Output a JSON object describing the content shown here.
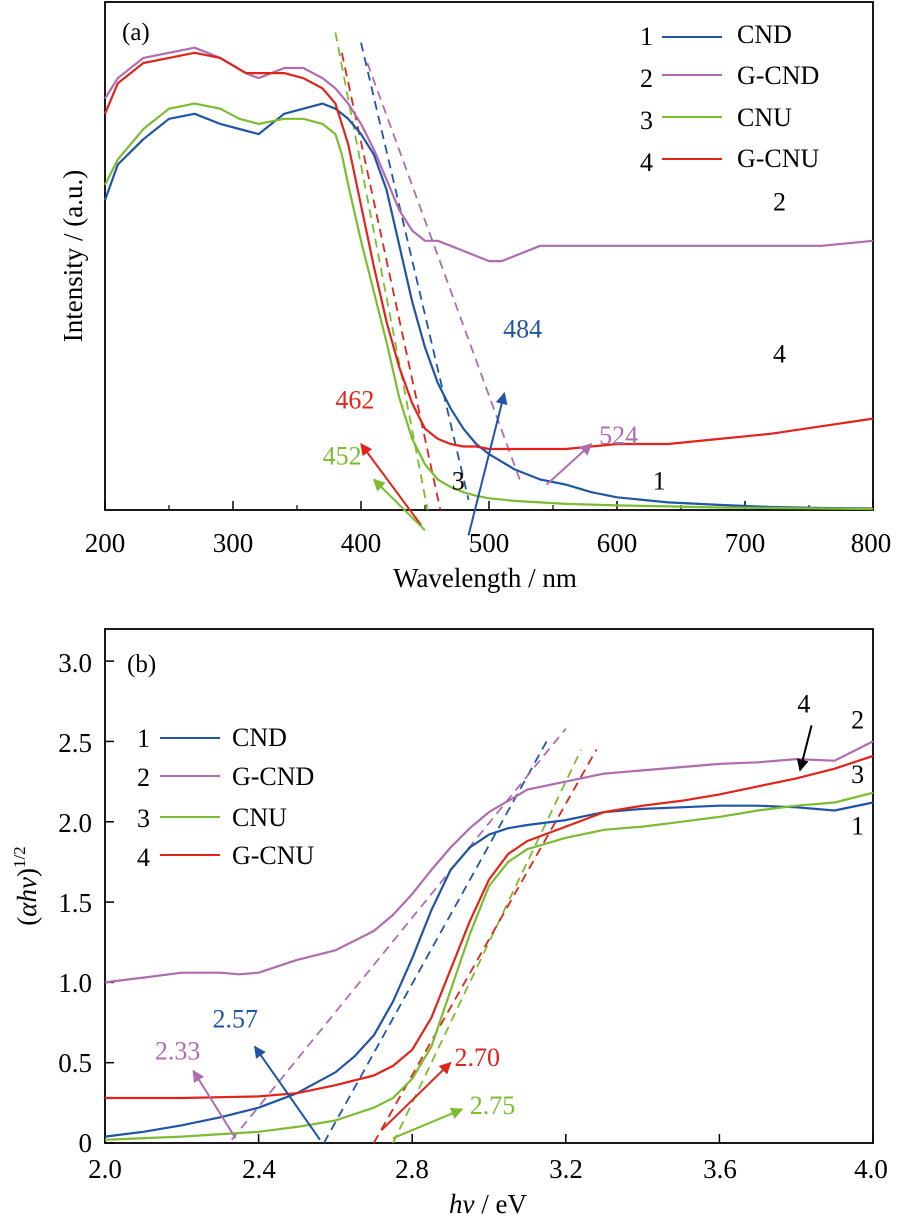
{
  "colors": {
    "CND": "#2055a5",
    "G-CND": "#b06cb0",
    "CNU": "#7cbd2f",
    "G-CNU": "#e2231a",
    "axis": "#000000"
  },
  "chart_data": [
    {
      "type": "line",
      "panel_label": "(a)",
      "xlabel": "Wavelength / nm",
      "ylabel": "Intensity / (a.u.)",
      "xlim": [
        200,
        800
      ],
      "ylim": [
        0,
        1
      ],
      "xticks": [
        "200",
        "300",
        "400",
        "500",
        "600",
        "700",
        "800"
      ],
      "yticks": [],
      "grid": false,
      "legend_position": "top-right",
      "series": [
        {
          "key": "CND",
          "legend_num": "1",
          "name": "CND",
          "x": [
            200,
            210,
            230,
            250,
            270,
            290,
            305,
            320,
            340,
            355,
            370,
            380,
            390,
            400,
            410,
            420,
            430,
            440,
            450,
            460,
            470,
            480,
            490,
            500,
            520,
            540,
            560,
            580,
            600,
            640,
            680,
            720,
            760,
            800
          ],
          "y": [
            0.61,
            0.68,
            0.73,
            0.77,
            0.78,
            0.76,
            0.75,
            0.74,
            0.78,
            0.79,
            0.8,
            0.79,
            0.77,
            0.74,
            0.7,
            0.63,
            0.52,
            0.41,
            0.32,
            0.25,
            0.2,
            0.16,
            0.13,
            0.11,
            0.08,
            0.06,
            0.05,
            0.035,
            0.025,
            0.015,
            0.01,
            0.006,
            0.004,
            0.003
          ]
        },
        {
          "key": "G-CND",
          "legend_num": "2",
          "name": "G-CND",
          "x": [
            200,
            210,
            230,
            250,
            270,
            290,
            310,
            320,
            340,
            355,
            370,
            380,
            390,
            400,
            410,
            420,
            430,
            440,
            450,
            460,
            470,
            480,
            490,
            500,
            510,
            520,
            540,
            560,
            600,
            640,
            680,
            720,
            760,
            800
          ],
          "y": [
            0.81,
            0.85,
            0.89,
            0.9,
            0.91,
            0.89,
            0.86,
            0.85,
            0.87,
            0.87,
            0.85,
            0.83,
            0.8,
            0.76,
            0.71,
            0.65,
            0.59,
            0.55,
            0.53,
            0.53,
            0.52,
            0.51,
            0.5,
            0.49,
            0.49,
            0.5,
            0.52,
            0.52,
            0.52,
            0.52,
            0.52,
            0.52,
            0.52,
            0.53
          ]
        },
        {
          "key": "CNU",
          "legend_num": "3",
          "name": "CNU",
          "x": [
            200,
            210,
            230,
            250,
            270,
            290,
            305,
            320,
            340,
            355,
            370,
            380,
            385,
            390,
            400,
            410,
            420,
            430,
            440,
            450,
            460,
            470,
            480,
            490,
            500,
            520,
            540,
            560,
            600,
            640,
            680,
            720,
            760,
            800
          ],
          "y": [
            0.64,
            0.69,
            0.75,
            0.79,
            0.8,
            0.79,
            0.77,
            0.76,
            0.77,
            0.77,
            0.76,
            0.74,
            0.7,
            0.64,
            0.53,
            0.43,
            0.33,
            0.22,
            0.14,
            0.09,
            0.06,
            0.045,
            0.035,
            0.028,
            0.023,
            0.018,
            0.015,
            0.012,
            0.009,
            0.007,
            0.005,
            0.004,
            0.003,
            0.002
          ]
        },
        {
          "key": "G-CNU",
          "legend_num": "4",
          "name": "G-CNU",
          "x": [
            200,
            210,
            230,
            250,
            270,
            290,
            310,
            320,
            340,
            355,
            370,
            380,
            390,
            400,
            410,
            420,
            430,
            440,
            450,
            460,
            470,
            480,
            490,
            500,
            520,
            560,
            600,
            640,
            680,
            720,
            760,
            800
          ],
          "y": [
            0.78,
            0.84,
            0.88,
            0.89,
            0.9,
            0.89,
            0.86,
            0.86,
            0.86,
            0.85,
            0.83,
            0.8,
            0.72,
            0.6,
            0.48,
            0.37,
            0.28,
            0.21,
            0.16,
            0.14,
            0.13,
            0.125,
            0.125,
            0.12,
            0.12,
            0.12,
            0.13,
            0.13,
            0.14,
            0.15,
            0.165,
            0.18
          ]
        }
      ],
      "curve_number_labels": [
        {
          "text": "2",
          "x": 727,
          "y": 0.59
        },
        {
          "text": "4",
          "x": 727,
          "y": 0.29
        },
        {
          "text": "3",
          "x": 476,
          "y": 0.04
        },
        {
          "text": "1",
          "x": 633,
          "y": 0.04
        }
      ],
      "tangent_lines": [
        {
          "key": "CND",
          "x": [
            400,
            484
          ],
          "y": [
            0.92,
            0.02
          ]
        },
        {
          "key": "G-CND",
          "x": [
            405,
            524
          ],
          "y": [
            0.88,
            0.06
          ]
        },
        {
          "key": "CNU",
          "x": [
            380,
            452
          ],
          "y": [
            0.94,
            0.0
          ]
        },
        {
          "key": "G-CNU",
          "x": [
            385,
            462
          ],
          "y": [
            0.9,
            0.0
          ]
        }
      ],
      "edge_labels": [
        {
          "key": "G-CNU",
          "text": "462",
          "x": 380,
          "y": 0.2,
          "arrow_from": [
            447,
            -0.03
          ],
          "arrow_to": [
            400,
            0.13
          ]
        },
        {
          "key": "CNU",
          "text": "452",
          "x": 370,
          "y": 0.09,
          "arrow_from": [
            450,
            -0.04
          ],
          "arrow_to": [
            410,
            0.06
          ]
        },
        {
          "key": "CND",
          "text": "484",
          "x": 511,
          "y": 0.34,
          "arrow_from": [
            484,
            -0.05
          ],
          "arrow_to": [
            512,
            0.23
          ]
        },
        {
          "key": "G-CND",
          "text": "524",
          "x": 586,
          "y": 0.13,
          "arrow_from": [
            545,
            0.05
          ],
          "arrow_to": [
            580,
            0.13
          ]
        }
      ]
    },
    {
      "type": "line",
      "panel_label": "(b)",
      "xlabel": "hν / eV",
      "ylabel": "(αhν)1/2",
      "xlim": [
        2.0,
        4.0
      ],
      "ylim": [
        0,
        3.2
      ],
      "xticks": [
        "2.0",
        "2.4",
        "2.8",
        "3.2",
        "3.6",
        "4.0"
      ],
      "yticks": [
        "0",
        "0.5",
        "1.0",
        "1.5",
        "2.0",
        "2.5",
        "3.0"
      ],
      "grid": false,
      "legend_position": "upper-left",
      "series": [
        {
          "key": "CND",
          "legend_num": "1",
          "name": "CND",
          "x": [
            2.0,
            2.1,
            2.2,
            2.3,
            2.4,
            2.5,
            2.6,
            2.65,
            2.7,
            2.75,
            2.8,
            2.85,
            2.9,
            2.95,
            3.0,
            3.05,
            3.1,
            3.2,
            3.3,
            3.4,
            3.5,
            3.6,
            3.7,
            3.8,
            3.85,
            3.9,
            4.0
          ],
          "y": [
            0.04,
            0.07,
            0.11,
            0.16,
            0.22,
            0.31,
            0.44,
            0.54,
            0.67,
            0.88,
            1.15,
            1.45,
            1.7,
            1.84,
            1.92,
            1.96,
            1.98,
            2.01,
            2.06,
            2.08,
            2.09,
            2.1,
            2.1,
            2.09,
            2.08,
            2.07,
            2.12
          ]
        },
        {
          "key": "G-CND",
          "legend_num": "2",
          "name": "G-CND",
          "x": [
            2.0,
            2.1,
            2.2,
            2.3,
            2.35,
            2.4,
            2.45,
            2.5,
            2.6,
            2.7,
            2.75,
            2.8,
            2.85,
            2.9,
            2.95,
            3.0,
            3.1,
            3.2,
            3.3,
            3.4,
            3.5,
            3.6,
            3.7,
            3.8,
            3.9,
            4.0
          ],
          "y": [
            1.0,
            1.03,
            1.06,
            1.06,
            1.05,
            1.06,
            1.1,
            1.14,
            1.2,
            1.32,
            1.42,
            1.55,
            1.7,
            1.84,
            1.96,
            2.06,
            2.2,
            2.25,
            2.3,
            2.32,
            2.34,
            2.36,
            2.37,
            2.39,
            2.38,
            2.5
          ]
        },
        {
          "key": "CNU",
          "legend_num": "3",
          "name": "CNU",
          "x": [
            2.0,
            2.2,
            2.4,
            2.5,
            2.6,
            2.7,
            2.75,
            2.8,
            2.85,
            2.9,
            2.95,
            3.0,
            3.05,
            3.1,
            3.2,
            3.3,
            3.4,
            3.5,
            3.6,
            3.7,
            3.8,
            3.9,
            4.0
          ],
          "y": [
            0.02,
            0.04,
            0.07,
            0.1,
            0.14,
            0.22,
            0.28,
            0.4,
            0.6,
            0.95,
            1.3,
            1.6,
            1.75,
            1.83,
            1.9,
            1.95,
            1.97,
            2.0,
            2.03,
            2.07,
            2.1,
            2.12,
            2.18
          ]
        },
        {
          "key": "G-CNU",
          "legend_num": "4",
          "name": "G-CNU",
          "x": [
            2.0,
            2.2,
            2.4,
            2.5,
            2.6,
            2.7,
            2.75,
            2.8,
            2.85,
            2.9,
            2.95,
            3.0,
            3.05,
            3.1,
            3.2,
            3.3,
            3.4,
            3.5,
            3.6,
            3.7,
            3.8,
            3.9,
            4.0
          ],
          "y": [
            0.28,
            0.28,
            0.29,
            0.31,
            0.36,
            0.42,
            0.48,
            0.58,
            0.78,
            1.08,
            1.38,
            1.64,
            1.8,
            1.88,
            1.97,
            2.06,
            2.1,
            2.13,
            2.17,
            2.22,
            2.27,
            2.33,
            2.41
          ]
        }
      ],
      "curve_number_labels": [
        {
          "text": "2",
          "x": 3.96,
          "y": 2.58
        },
        {
          "text": "3",
          "x": 3.96,
          "y": 2.24
        },
        {
          "text": "1",
          "x": 3.96,
          "y": 1.92
        }
      ],
      "arrow_label": {
        "text": "4",
        "x": 3.82,
        "y": 2.68,
        "arrow_from": [
          3.84,
          2.6
        ],
        "arrow_to": [
          3.81,
          2.32
        ]
      },
      "tangent_lines": [
        {
          "key": "CND",
          "x": [
            2.57,
            3.15
          ],
          "y": [
            0.0,
            2.5
          ]
        },
        {
          "key": "G-CND",
          "x": [
            2.33,
            3.2
          ],
          "y": [
            0.02,
            2.58
          ]
        },
        {
          "key": "CNU",
          "x": [
            2.75,
            3.24
          ],
          "y": [
            0.0,
            2.45
          ]
        },
        {
          "key": "G-CNU",
          "x": [
            2.7,
            3.28
          ],
          "y": [
            0.0,
            2.45
          ]
        }
      ],
      "edge_labels": [
        {
          "key": "CND",
          "text": "2.57",
          "x": 2.28,
          "y": 0.72,
          "arrow_from": [
            2.56,
            0.02
          ],
          "arrow_to": [
            2.39,
            0.6
          ]
        },
        {
          "key": "G-CND",
          "text": "2.33",
          "x": 2.13,
          "y": 0.52,
          "arrow_from": [
            2.34,
            0.03
          ],
          "arrow_to": [
            2.23,
            0.45
          ]
        },
        {
          "key": "G-CNU",
          "text": "2.70",
          "x": 2.91,
          "y": 0.48,
          "arrow_from": [
            2.72,
            0.08
          ],
          "arrow_to": [
            2.9,
            0.5
          ]
        },
        {
          "key": "CNU",
          "text": "2.75",
          "x": 2.95,
          "y": 0.18,
          "arrow_from": [
            2.75,
            0.03
          ],
          "arrow_to": [
            2.93,
            0.21
          ]
        }
      ]
    }
  ]
}
